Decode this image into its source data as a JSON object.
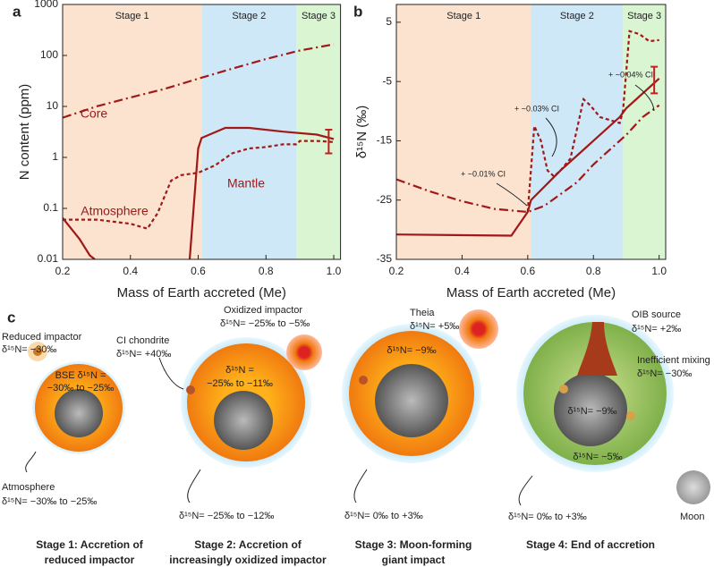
{
  "chart_data": [
    {
      "type": "line",
      "panel": "a",
      "ylabel": "N content (ppm)",
      "xlabel": "Mass of Earth accreted (Me)",
      "log_y": true,
      "xlim": [
        0.2,
        1.02
      ],
      "ylim": [
        0.01,
        1000
      ],
      "xticks": [
        0.2,
        0.4,
        0.6,
        0.8,
        {
          "value": 1,
          "label": "1.0"
        }
      ],
      "yticks": [
        0.01,
        0.1,
        1,
        10,
        100,
        1000
      ],
      "regions": [
        {
          "label": "Stage 1",
          "from": 0.2,
          "to": 0.61,
          "color": "#fbe3d0",
          "label_color": "#f08a3c"
        },
        {
          "label": "Stage 2",
          "from": 0.61,
          "to": 0.89,
          "color": "#cfe8f8",
          "label_color": "#2aa0e0"
        },
        {
          "label": "Stage 3",
          "from": 0.89,
          "to": 1.02,
          "color": "#d9f5d2",
          "label_color": "#2ca02c"
        }
      ],
      "series": [
        {
          "name": "Core",
          "color": "#a01818",
          "dash": "dashdot",
          "x": [
            0.2,
            0.3,
            0.4,
            0.5,
            0.6,
            0.7,
            0.8,
            0.9,
            1.0
          ],
          "values": [
            6,
            10,
            15,
            22,
            35,
            55,
            85,
            125,
            165
          ]
        },
        {
          "name": "Mantle",
          "color": "#a01818",
          "dash": "solid",
          "x": [
            0.2,
            0.25,
            0.28,
            0.295,
            0.4,
            0.575,
            0.6,
            0.61,
            0.68,
            0.75,
            0.85,
            0.95,
            1.0
          ],
          "values": [
            0.065,
            0.025,
            0.012,
            0.01,
            null,
            0.01,
            1.5,
            2.4,
            3.8,
            3.8,
            3.2,
            2.8,
            2.3
          ]
        },
        {
          "name": "Atmosphere",
          "color": "#a01818",
          "dash": "dotted",
          "x": [
            0.2,
            0.3,
            0.4,
            0.45,
            0.48,
            0.52,
            0.55,
            0.6,
            0.65,
            0.7,
            0.75,
            0.8,
            0.85,
            0.89,
            0.9,
            0.95,
            1.0
          ],
          "values": [
            0.06,
            0.06,
            0.05,
            0.04,
            0.08,
            0.35,
            0.45,
            0.5,
            0.7,
            1.2,
            1.5,
            1.6,
            1.8,
            1.8,
            2.1,
            2.1,
            2.0
          ]
        }
      ],
      "error_bar": {
        "x": 0.985,
        "low": 1.2,
        "high": 3.5
      }
    },
    {
      "type": "line",
      "panel": "b",
      "ylabel": "δ¹⁵N (‰)",
      "xlabel": "Mass of Earth accreted (Me)",
      "log_y": false,
      "xlim": [
        0.2,
        1.02
      ],
      "ylim": [
        -35,
        8
      ],
      "xticks": [
        0.2,
        0.4,
        0.6,
        0.8,
        {
          "value": 1,
          "label": "1.0"
        }
      ],
      "yticks": [
        -35,
        -25,
        -15,
        -5,
        5
      ],
      "regions": [
        {
          "label": "Stage 1",
          "from": 0.2,
          "to": 0.61,
          "color": "#fbe3d0",
          "label_color": "#f08a3c"
        },
        {
          "label": "Stage 2",
          "from": 0.61,
          "to": 0.89,
          "color": "#cfe8f8",
          "label_color": "#2aa0e0"
        },
        {
          "label": "Stage 3",
          "from": 0.89,
          "to": 1.02,
          "color": "#d9f5d2",
          "label_color": "#2ca02c"
        }
      ],
      "series": [
        {
          "name": "Mantle",
          "color": "#a01818",
          "dash": "solid",
          "x": [
            0.2,
            0.55,
            0.6,
            0.61,
            0.7,
            0.75,
            0.8,
            0.88,
            0.9,
            1.0
          ],
          "values": [
            -30.8,
            -31,
            -27,
            -25,
            -20,
            -17.5,
            -15,
            -11,
            -9.5,
            -4.5
          ]
        },
        {
          "name": "Core",
          "color": "#a01818",
          "dash": "dashdot",
          "x": [
            0.2,
            0.3,
            0.4,
            0.5,
            0.6,
            0.65,
            0.7,
            0.75,
            0.8,
            0.88,
            0.9,
            0.95,
            1.0
          ],
          "values": [
            -21.5,
            -23.5,
            -25.2,
            -26.5,
            -27,
            -26,
            -24,
            -22,
            -19,
            -15,
            -14,
            -11,
            -9
          ]
        },
        {
          "name": "Atmosphere",
          "color": "#a01818",
          "dash": "dotted",
          "x": [
            0.6,
            0.62,
            0.64,
            0.66,
            0.68,
            0.7,
            0.73,
            0.75,
            0.77,
            0.79,
            0.82,
            0.88,
            0.89,
            0.91,
            0.94,
            0.97,
            1.0
          ],
          "values": [
            -27,
            -12.5,
            -15,
            -20,
            -21,
            -20,
            -18,
            -13,
            -8,
            -9,
            -11,
            -12,
            -10,
            3.5,
            3,
            1.8,
            2
          ]
        }
      ],
      "error_bar": {
        "x": 0.985,
        "low": -7,
        "high": -2.5
      },
      "annotations": [
        "+ ~0.01% CI",
        "+ ~0.03% CI",
        "+ ~0.04% CI"
      ]
    }
  ],
  "panel_c": {
    "label": "c",
    "stages": [
      {
        "title": [
          "Stage 1: Accretion of",
          "reduced impactor"
        ],
        "notes": [
          "Reduced impactor",
          "δ¹⁵N= −30‰",
          "BSE δ¹⁵N =",
          "−30‰ to −25‰",
          "Atmosphere",
          "δ¹⁵N= −30‰ to −25‰"
        ]
      },
      {
        "title": [
          "Stage 2: Accretion of",
          "increasingly oxidized impactor"
        ],
        "notes": [
          "CI chondrite",
          "δ¹⁵N= +40‰",
          "Oxidized impactor",
          "δ¹⁵N= −25‰ to −5‰",
          "δ¹⁵N =",
          "−25‰ to −11‰",
          "δ¹⁵N= −25‰ to −12‰"
        ]
      },
      {
        "title": [
          "Stage 3: Moon-forming",
          "giant impact"
        ],
        "notes": [
          "Theia",
          "δ¹⁵N= +5‰",
          "δ¹⁵N= −9‰",
          "δ¹⁵N= 0‰ to +3‰"
        ]
      },
      {
        "title": [
          "Stage 4: End of accretion"
        ],
        "notes": [
          "OIB source",
          "δ¹⁵N= +2‰",
          "Inefficient mixing",
          "δ¹⁵N= −30‰",
          "δ¹⁵N= −9‰",
          "δ¹⁵N= −5‰",
          "δ¹⁵N= 0‰ to +3‰",
          "Moon"
        ]
      }
    ]
  }
}
